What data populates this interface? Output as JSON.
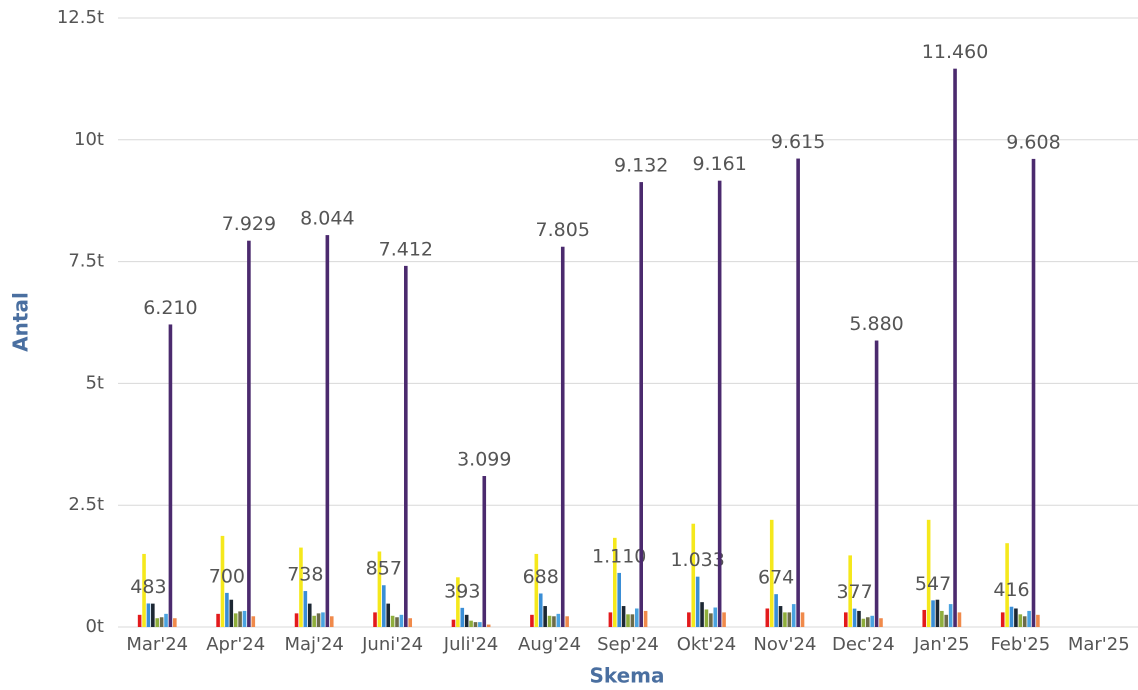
{
  "chart_data": {
    "type": "bar",
    "x_label": "Skema",
    "y_label": "Antal",
    "categories": [
      "Mar'24",
      "Apr'24",
      "Maj'24",
      "Juni'24",
      "Juli'24",
      "Aug'24",
      "Sep'24",
      "Okt'24",
      "Nov'24",
      "Dec'24",
      "Jan'25",
      "Feb'25",
      "Mar'25"
    ],
    "ylim": [
      0,
      12500
    ],
    "yticks": [
      {
        "value": 0,
        "label": "0t"
      },
      {
        "value": 2500,
        "label": "2.5t"
      },
      {
        "value": 5000,
        "label": "5t"
      },
      {
        "value": 7500,
        "label": "7.5t"
      },
      {
        "value": 10000,
        "label": "10t"
      },
      {
        "value": 12500,
        "label": "12.5t"
      }
    ],
    "grid": true,
    "series": [
      {
        "color": "#e31a1c",
        "values": [
          250,
          270,
          280,
          300,
          150,
          250,
          300,
          300,
          380,
          300,
          350,
          300,
          null
        ]
      },
      {
        "color": "#f5e81c",
        "values": [
          1500,
          1870,
          1630,
          1550,
          1020,
          1500,
          1830,
          2120,
          2200,
          1470,
          2200,
          1720,
          null
        ]
      },
      {
        "color": "#3a8ed6",
        "values": [
          483,
          700,
          738,
          857,
          393,
          688,
          1110,
          1033,
          674,
          377,
          547,
          416,
          null
        ],
        "value_labels": [
          "483",
          "700",
          "738",
          "857",
          "393",
          "688",
          "1.110",
          "1.033",
          "674",
          "377",
          "547",
          "416",
          null
        ]
      },
      {
        "color": "#1c2733",
        "values": [
          480,
          560,
          480,
          480,
          250,
          430,
          430,
          510,
          430,
          330,
          560,
          380,
          null
        ]
      },
      {
        "color": "#8fae3c",
        "values": [
          180,
          280,
          230,
          230,
          130,
          230,
          260,
          360,
          300,
          170,
          330,
          260,
          null
        ]
      },
      {
        "color": "#6b6b4a",
        "values": [
          200,
          320,
          280,
          200,
          100,
          220,
          260,
          280,
          300,
          200,
          250,
          220,
          null
        ]
      },
      {
        "color": "#4aa3e0",
        "values": [
          270,
          330,
          300,
          250,
          100,
          270,
          380,
          400,
          470,
          230,
          470,
          330,
          null
        ]
      },
      {
        "color": "#4b2a6e",
        "values": [
          6210,
          7929,
          8044,
          7412,
          3099,
          7805,
          9132,
          9161,
          9615,
          5880,
          11460,
          9608,
          null
        ],
        "value_labels": [
          "6.210",
          "7.929",
          "8.044",
          "7.412",
          "3.099",
          "7.805",
          "9.132",
          "9.161",
          "9.615",
          "5.880",
          "11.460",
          "9.608",
          null
        ]
      },
      {
        "color": "#f08a4b",
        "values": [
          180,
          220,
          220,
          180,
          50,
          220,
          330,
          300,
          300,
          180,
          300,
          250,
          null
        ]
      }
    ]
  }
}
